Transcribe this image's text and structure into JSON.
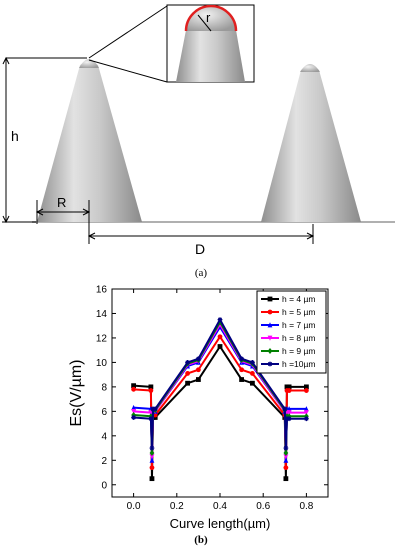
{
  "panel_a": {
    "caption": "(a)",
    "labels": {
      "h": "h",
      "R": "R",
      "D": "D",
      "r": "r"
    },
    "colors": {
      "cone_light": "#e2e2e2",
      "cone_dark": "#8e8e8e",
      "inset_arc": "#e02020"
    }
  },
  "panel_b": {
    "caption": "(b)"
  },
  "chart_data": {
    "type": "line",
    "xlabel": "Curve length(µm)",
    "ylabel": "Es(V/µm)",
    "xlim": [
      -0.1,
      0.9
    ],
    "ylim": [
      -1,
      16
    ],
    "xticks": [
      0.0,
      0.2,
      0.4,
      0.6,
      0.8
    ],
    "xtick_labels": [
      "0.0",
      "0.2",
      "0.4",
      "0.6",
      "0.8"
    ],
    "yticks": [
      0,
      2,
      4,
      6,
      8,
      10,
      12,
      14,
      16
    ],
    "ytick_labels": [
      "0",
      "2",
      "4",
      "6",
      "8",
      "10",
      "12",
      "14",
      "16"
    ],
    "legend_position": "top-right",
    "grid": false,
    "series": [
      {
        "name": "h = 4 µm",
        "color": "#000000",
        "marker": "square",
        "x": [
          0.0,
          0.08,
          0.085,
          0.09,
          0.1,
          0.25,
          0.3,
          0.4,
          0.5,
          0.55,
          0.7,
          0.705,
          0.71,
          0.72,
          0.8
        ],
        "y": [
          8.1,
          8.0,
          0.5,
          5.5,
          5.5,
          8.3,
          8.6,
          11.3,
          8.6,
          8.3,
          5.5,
          0.5,
          8.0,
          8.0,
          8.0
        ]
      },
      {
        "name": "h = 5 µm",
        "color": "#ff0000",
        "marker": "circle",
        "x": [
          0.0,
          0.08,
          0.085,
          0.09,
          0.1,
          0.25,
          0.3,
          0.4,
          0.5,
          0.55,
          0.7,
          0.705,
          0.71,
          0.72,
          0.8
        ],
        "y": [
          7.8,
          7.7,
          1.4,
          5.7,
          5.7,
          9.1,
          9.4,
          12.1,
          9.4,
          9.1,
          5.7,
          1.4,
          7.7,
          7.7,
          7.7
        ]
      },
      {
        "name": "h = 7 µm",
        "color": "#0000ff",
        "marker": "triangle",
        "x": [
          0.0,
          0.08,
          0.085,
          0.09,
          0.1,
          0.25,
          0.3,
          0.4,
          0.5,
          0.55,
          0.7,
          0.705,
          0.71,
          0.72,
          0.8
        ],
        "y": [
          6.3,
          6.2,
          2.0,
          6.0,
          6.0,
          9.7,
          10.0,
          12.9,
          10.0,
          9.7,
          6.0,
          2.0,
          6.2,
          6.2,
          6.2
        ]
      },
      {
        "name": "h = 8 µm",
        "color": "#ff00ff",
        "marker": "triangle-down",
        "x": [
          0.0,
          0.08,
          0.085,
          0.09,
          0.1,
          0.25,
          0.3,
          0.4,
          0.5,
          0.55,
          0.7,
          0.705,
          0.71,
          0.72,
          0.8
        ],
        "y": [
          6.0,
          5.9,
          2.3,
          6.0,
          6.0,
          9.8,
          10.1,
          13.1,
          10.1,
          9.8,
          6.0,
          2.3,
          5.9,
          5.9,
          5.9
        ]
      },
      {
        "name": "h = 9 µm",
        "color": "#008000",
        "marker": "diamond",
        "x": [
          0.0,
          0.08,
          0.085,
          0.09,
          0.1,
          0.25,
          0.3,
          0.4,
          0.5,
          0.55,
          0.7,
          0.705,
          0.71,
          0.72,
          0.8
        ],
        "y": [
          5.7,
          5.6,
          2.6,
          6.1,
          6.1,
          9.9,
          10.2,
          13.3,
          10.2,
          9.9,
          6.1,
          2.6,
          5.6,
          5.6,
          5.6
        ]
      },
      {
        "name": "h =10µm",
        "color": "#000080",
        "marker": "star",
        "x": [
          0.0,
          0.08,
          0.085,
          0.09,
          0.1,
          0.25,
          0.3,
          0.4,
          0.5,
          0.55,
          0.7,
          0.705,
          0.71,
          0.72,
          0.8
        ],
        "y": [
          5.5,
          5.4,
          3.0,
          6.2,
          6.2,
          10.0,
          10.3,
          13.5,
          10.3,
          10.0,
          6.2,
          3.0,
          5.4,
          5.4,
          5.4
        ]
      }
    ]
  }
}
